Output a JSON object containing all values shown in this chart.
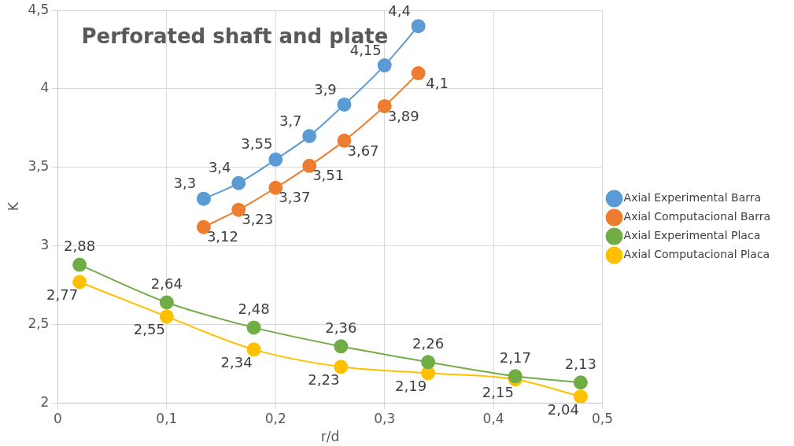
{
  "chart_data": {
    "type": "line",
    "title": "Perforated shaft and plate",
    "xlabel": "r/d",
    "ylabel": "K",
    "xlim": [
      0,
      0.5
    ],
    "xticks": [
      {
        "value": 0,
        "label": "0"
      },
      {
        "value": 0.1,
        "label": "0,1"
      },
      {
        "value": 0.2,
        "label": "0,2"
      },
      {
        "value": 0.3,
        "label": "0,3"
      },
      {
        "value": 0.4,
        "label": "0,4"
      },
      {
        "value": 0.5,
        "label": "0,5"
      }
    ],
    "ylim": [
      2,
      4.5
    ],
    "yticks": [
      {
        "value": 2,
        "label": "2"
      },
      {
        "value": 2.5,
        "label": "2,5"
      },
      {
        "value": 3,
        "label": "3"
      },
      {
        "value": 3.5,
        "label": "3,5"
      },
      {
        "value": 4,
        "label": "4"
      },
      {
        "value": 4.5,
        "label": "4,5"
      }
    ],
    "grid": true,
    "legend": "right",
    "marker": "circle",
    "line_style": "solid",
    "series": [
      {
        "name": "Axial Experimental Barra",
        "color": "#5b9bd5",
        "x": [
          0.134,
          0.166,
          0.2,
          0.231,
          0.263,
          0.3,
          0.331
        ],
        "values": [
          3.3,
          3.4,
          3.55,
          3.7,
          3.9,
          4.15,
          4.4
        ],
        "value_labels": [
          "3,3",
          "3,4",
          "3,55",
          "3,7",
          "3,9",
          "4,15",
          "4,4"
        ]
      },
      {
        "name": "Axial Computacional Barra",
        "color": "#ed7d31",
        "x": [
          0.134,
          0.166,
          0.2,
          0.231,
          0.263,
          0.3,
          0.331
        ],
        "values": [
          3.12,
          3.23,
          3.37,
          3.51,
          3.67,
          3.89,
          4.1
        ],
        "value_labels": [
          "3,12",
          "3,23",
          "3,37",
          "3,51",
          "3,67",
          "3,89",
          "4,1"
        ]
      },
      {
        "name": "Axial Experimental Placa",
        "color": "#70ad47",
        "x": [
          0.02,
          0.1,
          0.18,
          0.26,
          0.34,
          0.42,
          0.48
        ],
        "values": [
          2.88,
          2.64,
          2.48,
          2.36,
          2.26,
          2.17,
          2.13
        ],
        "value_labels": [
          "2,88",
          "2,64",
          "2,48",
          "2,36",
          "2,26",
          "2,17",
          "2,13"
        ]
      },
      {
        "name": "Axial Computacional Placa",
        "color": "#ffc000",
        "x": [
          0.02,
          0.1,
          0.18,
          0.26,
          0.34,
          0.42,
          0.48
        ],
        "values": [
          2.77,
          2.55,
          2.34,
          2.23,
          2.19,
          2.15,
          2.04
        ],
        "value_labels": [
          "2,77",
          "2,55",
          "2,34",
          "2,23",
          "2,19",
          "2,15",
          "2,04"
        ]
      }
    ]
  }
}
